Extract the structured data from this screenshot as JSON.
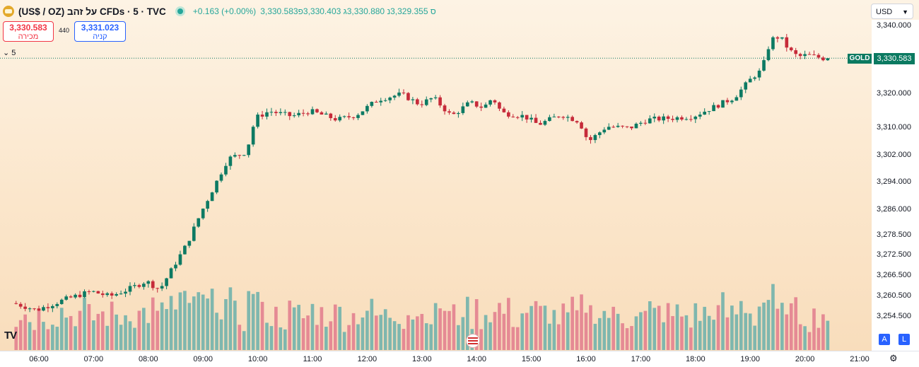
{
  "header": {
    "symbol": "(US$ / OZ) על זהב CFDs · 5 · TVC",
    "change": "+0.163 (+0.00%)",
    "ohlc_text": "3,330.583ס 3,329.355נ 3,330.880ג 3,330.403פ"
  },
  "trade": {
    "sell_value": "3,330.583",
    "sell_label": "מכירה",
    "spread": "440",
    "buy_value": "3,331.023",
    "buy_label": "קניה"
  },
  "interval_label": "5",
  "currency": "USD",
  "last_price": {
    "label": "GOLD",
    "value": "3,330.583"
  },
  "badges": {
    "a": "A",
    "l": "L"
  },
  "colors": {
    "up": "#26a69a",
    "down": "#ef5350",
    "volume_up": "#7fb7ae",
    "volume_down": "#e58a94",
    "tag": "#0b7a61"
  },
  "icons": [
    "gold-logo-icon",
    "chevron-down-icon",
    "gear-icon",
    "us-flag-icon",
    "tradingview-logo-icon"
  ],
  "chart_data": {
    "type": "candlestick",
    "y_ticks": [
      "3,340.000",
      "3,320.000",
      "3,310.000",
      "3,302.000",
      "3,294.000",
      "3,286.000",
      "3,278.500",
      "3,272.500",
      "3,266.500",
      "3,260.500",
      "3,254.500"
    ],
    "x_ticks": [
      "06:00",
      "07:00",
      "08:00",
      "09:00",
      "10:00",
      "11:00",
      "12:00",
      "13:00",
      "14:00",
      "15:00",
      "16:00",
      "17:00",
      "18:00",
      "19:00",
      "20:00",
      "21:00"
    ],
    "ylim": [
      3250,
      3342
    ],
    "x_start": "05:35",
    "bar_minutes": 5,
    "anchors": [
      [
        "05:35",
        3258.5
      ],
      [
        "06:00",
        3256.5
      ],
      [
        "06:30",
        3259.5
      ],
      [
        "07:00",
        3262
      ],
      [
        "07:20",
        3260.5
      ],
      [
        "07:40",
        3262.5
      ],
      [
        "08:00",
        3265
      ],
      [
        "08:15",
        3262.5
      ],
      [
        "08:45",
        3276
      ],
      [
        "09:00",
        3285
      ],
      [
        "09:30",
        3301
      ],
      [
        "09:50",
        3303
      ],
      [
        "10:00",
        3313
      ],
      [
        "10:15",
        3315
      ],
      [
        "10:40",
        3313.5
      ],
      [
        "11:00",
        3315
      ],
      [
        "11:30",
        3312.5
      ],
      [
        "11:50",
        3313.8
      ],
      [
        "12:15",
        3318.5
      ],
      [
        "12:40",
        3320
      ],
      [
        "13:00",
        3317
      ],
      [
        "13:15",
        3319
      ],
      [
        "13:35",
        3313.5
      ],
      [
        "13:55",
        3317.5
      ],
      [
        "14:10",
        3316
      ],
      [
        "14:20",
        3319
      ],
      [
        "14:30",
        3314.5
      ],
      [
        "14:55",
        3313.5
      ],
      [
        "15:10",
        3311
      ],
      [
        "15:35",
        3314
      ],
      [
        "15:55",
        3312
      ],
      [
        "16:05",
        3306
      ],
      [
        "16:25",
        3310.5
      ],
      [
        "16:50",
        3310
      ],
      [
        "17:10",
        3312.5
      ],
      [
        "17:40",
        3313
      ],
      [
        "18:00",
        3313.5
      ],
      [
        "18:25",
        3316.5
      ],
      [
        "18:45",
        3319
      ],
      [
        "19:05",
        3325
      ],
      [
        "19:15",
        3327
      ],
      [
        "19:25",
        3336
      ],
      [
        "19:35",
        3337
      ],
      [
        "19:45",
        3333
      ],
      [
        "19:55",
        3331
      ],
      [
        "20:05",
        3331.5
      ],
      [
        "20:25",
        3330.4
      ]
    ],
    "volume_range": [
      0,
      1
    ]
  }
}
